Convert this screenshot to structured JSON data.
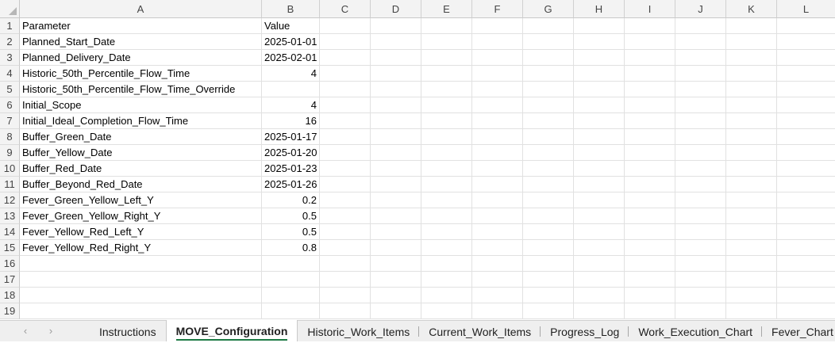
{
  "columns": [
    "A",
    "B",
    "C",
    "D",
    "E",
    "F",
    "G",
    "H",
    "I",
    "J",
    "K",
    "L"
  ],
  "rows": [
    {
      "n": "1",
      "a": "Parameter",
      "b": "Value",
      "b_align": "left"
    },
    {
      "n": "2",
      "a": "Planned_Start_Date",
      "b": "2025-01-01"
    },
    {
      "n": "3",
      "a": "Planned_Delivery_Date",
      "b": "2025-02-01"
    },
    {
      "n": "4",
      "a": "Historic_50th_Percentile_Flow_Time",
      "b": "4"
    },
    {
      "n": "5",
      "a": "Historic_50th_Percentile_Flow_Time_Override",
      "b": ""
    },
    {
      "n": "6",
      "a": "Initial_Scope",
      "b": "4"
    },
    {
      "n": "7",
      "a": "Initial_Ideal_Completion_Flow_Time",
      "b": "16"
    },
    {
      "n": "8",
      "a": "Buffer_Green_Date",
      "b": "2025-01-17"
    },
    {
      "n": "9",
      "a": "Buffer_Yellow_Date",
      "b": "2025-01-20"
    },
    {
      "n": "10",
      "a": "Buffer_Red_Date",
      "b": "2025-01-23"
    },
    {
      "n": "11",
      "a": "Buffer_Beyond_Red_Date",
      "b": "2025-01-26"
    },
    {
      "n": "12",
      "a": "Fever_Green_Yellow_Left_Y",
      "b": "0.2"
    },
    {
      "n": "13",
      "a": "Fever_Green_Yellow_Right_Y",
      "b": "0.5"
    },
    {
      "n": "14",
      "a": "Fever_Yellow_Red_Left_Y",
      "b": "0.5"
    },
    {
      "n": "15",
      "a": "Fever_Yellow_Red_Right_Y",
      "b": "0.8"
    },
    {
      "n": "16",
      "a": "",
      "b": ""
    },
    {
      "n": "17",
      "a": "",
      "b": ""
    },
    {
      "n": "18",
      "a": "",
      "b": ""
    },
    {
      "n": "19",
      "a": "",
      "b": ""
    }
  ],
  "sheet_tabs": {
    "prev_icon": "chevron-left-icon",
    "next_icon": "chevron-right-icon",
    "prev_glyph": "‹",
    "next_glyph": "›",
    "items": [
      "Instructions",
      "MOVE_Configuration",
      "Historic_Work_Items",
      "Current_Work_Items",
      "Progress_Log",
      "Work_Execution_Chart",
      "Fever_Chart"
    ],
    "active": "MOVE_Configuration",
    "active_color": "#1d7a44"
  }
}
